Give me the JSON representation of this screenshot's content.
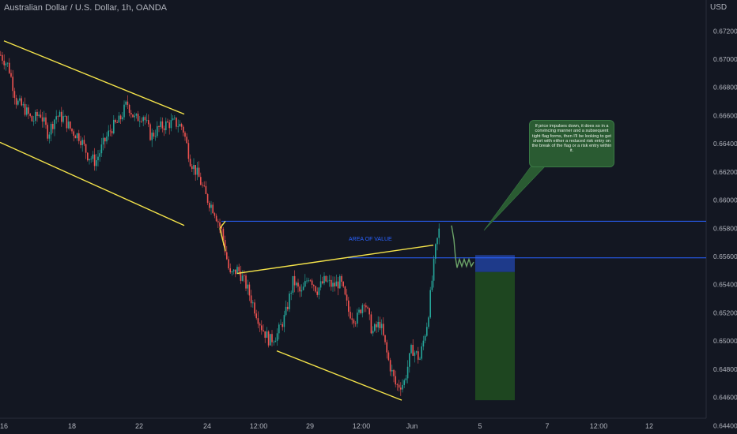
{
  "header": {
    "title": "Australian Dollar / U.S. Dollar, 1h, OANDA"
  },
  "currency": "USD",
  "annotation": {
    "note": "If price impulses down, it does so in a convincing manner and a subsequent tight flag forms, then I'll be looking to get short with either a reduced risk entry on the break of the flag or a risk entry within it.",
    "area_label": "AREA OF VALUE"
  },
  "colors": {
    "background": "#131722",
    "up": "#26a69a",
    "down": "#ef5350",
    "trendline": "#f5e44a",
    "level": "#2962ff",
    "target": "#1e4620",
    "entry": "#1e3a8a",
    "projection": "#6ba368"
  },
  "chart_data": {
    "type": "candlestick",
    "symbol": "AUDUSD",
    "timeframe": "1h",
    "yaxis": {
      "ticks": [
        "0.67200",
        "0.67000",
        "0.66800",
        "0.66600",
        "0.66400",
        "0.66200",
        "0.66000",
        "0.65800",
        "0.65600",
        "0.65400",
        "0.65200",
        "0.65000",
        "0.64800",
        "0.64600",
        "0.64400"
      ],
      "range": [
        0.6434,
        0.6742
      ]
    },
    "xaxis": {
      "ticks": [
        "16",
        "18",
        "22",
        "24",
        "12:00",
        "29",
        "12:00",
        "Jun",
        "5",
        "7",
        "12:00",
        "12"
      ]
    },
    "price_path": [
      [
        0,
        0.6703
      ],
      [
        10,
        0.6695
      ],
      [
        20,
        0.667
      ],
      [
        30,
        0.6665
      ],
      [
        40,
        0.6656
      ],
      [
        50,
        0.6662
      ],
      [
        60,
        0.6647
      ],
      [
        70,
        0.666
      ],
      [
        80,
        0.6658
      ],
      [
        90,
        0.6649
      ],
      [
        100,
        0.6645
      ],
      [
        110,
        0.6632
      ],
      [
        120,
        0.6627
      ],
      [
        130,
        0.664
      ],
      [
        140,
        0.6651
      ],
      [
        150,
        0.6656
      ],
      [
        160,
        0.6669
      ],
      [
        170,
        0.6657
      ],
      [
        180,
        0.6661
      ],
      [
        190,
        0.6645
      ],
      [
        200,
        0.6651
      ],
      [
        210,
        0.6654
      ],
      [
        220,
        0.6655
      ],
      [
        230,
        0.6652
      ],
      [
        240,
        0.6628
      ],
      [
        250,
        0.6617
      ],
      [
        260,
        0.6602
      ],
      [
        270,
        0.6593
      ],
      [
        280,
        0.6577
      ],
      [
        290,
        0.6546
      ],
      [
        300,
        0.6551
      ],
      [
        310,
        0.654
      ],
      [
        320,
        0.6525
      ],
      [
        330,
        0.651
      ],
      [
        340,
        0.65
      ],
      [
        350,
        0.6505
      ],
      [
        360,
        0.6518
      ],
      [
        370,
        0.6543
      ],
      [
        380,
        0.6533
      ],
      [
        390,
        0.6547
      ],
      [
        400,
        0.6536
      ],
      [
        410,
        0.6543
      ],
      [
        420,
        0.6539
      ],
      [
        430,
        0.6542
      ],
      [
        440,
        0.6521
      ],
      [
        450,
        0.6515
      ],
      [
        460,
        0.653
      ],
      [
        470,
        0.6506
      ],
      [
        480,
        0.6513
      ],
      [
        490,
        0.6487
      ],
      [
        500,
        0.6468
      ],
      [
        510,
        0.647
      ],
      [
        520,
        0.6495
      ],
      [
        530,
        0.6487
      ],
      [
        540,
        0.6515
      ],
      [
        550,
        0.6565
      ],
      [
        555,
        0.658
      ]
    ],
    "horizontal_levels": [
      0.6585,
      0.6559
    ],
    "trendlines": [
      [
        [
          5,
          0.6713
        ],
        [
          233,
          0.6661
        ]
      ],
      [
        [
          0,
          0.6641
        ],
        [
          233,
          0.6582
        ]
      ],
      [
        [
          278,
          0.658
        ],
        [
          285,
          0.6585
        ]
      ],
      [
        [
          278,
          0.658
        ],
        [
          285,
          0.6564
        ]
      ],
      [
        [
          300,
          0.6548
        ],
        [
          548,
          0.6568
        ]
      ],
      [
        [
          350,
          0.6493
        ],
        [
          508,
          0.6458
        ]
      ]
    ],
    "target_zone": {
      "x": [
        601,
        651
      ],
      "top": 0.6561,
      "entry_bottom": 0.6549,
      "bottom": 0.6458
    }
  }
}
